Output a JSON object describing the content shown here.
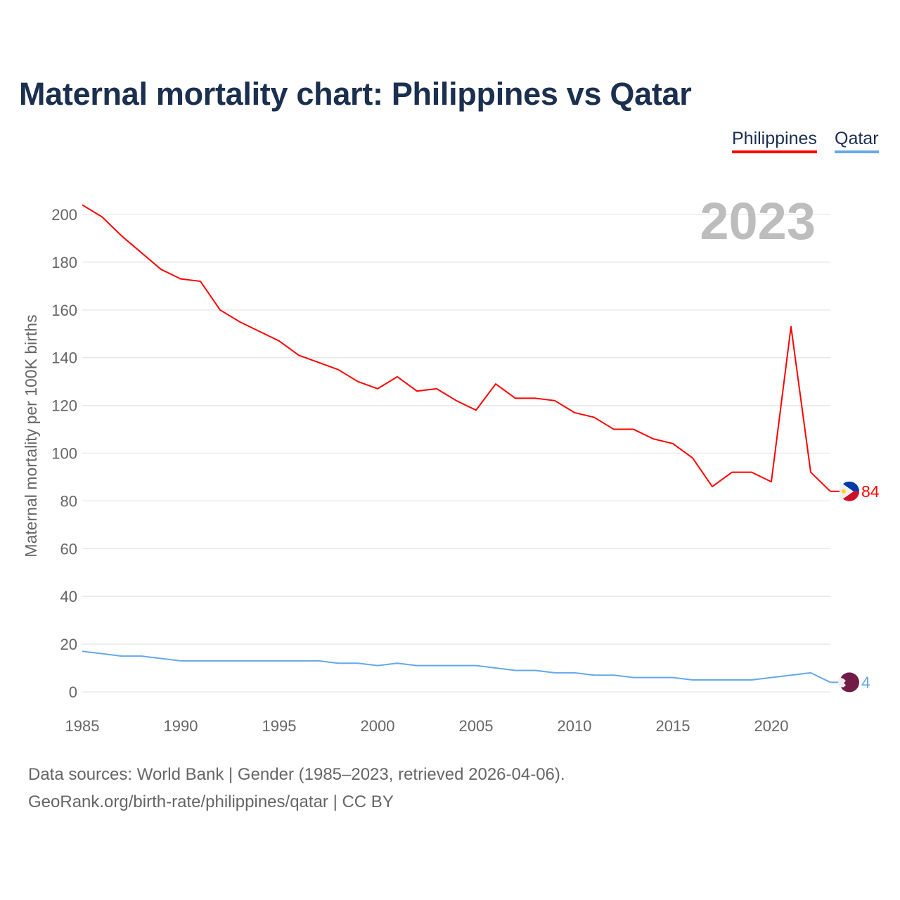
{
  "header": {
    "title": "Maternal mortality chart: Philippines vs Qatar"
  },
  "legend": [
    {
      "label": "Philippines",
      "color": "#ff0000"
    },
    {
      "label": "Qatar",
      "color": "#64a8ec"
    }
  ],
  "footer": {
    "line1": "Data sources: World Bank | Gender (1985–2023, retrieved 2026-04-06).",
    "line2": "GeoRank.org/birth-rate/philippines/qatar | CC BY"
  },
  "chart_data": {
    "type": "line",
    "title": "Maternal mortality chart: Philippines vs Qatar",
    "year_label": "2023",
    "xlabel": "",
    "ylabel": "Maternal mortality per 100K births",
    "xlim": [
      1985,
      2023
    ],
    "ylim": [
      0,
      200
    ],
    "xticks": [
      1985,
      1990,
      1995,
      2000,
      2005,
      2010,
      2015,
      2020
    ],
    "yticks": [
      0,
      20,
      40,
      60,
      80,
      100,
      120,
      140,
      160,
      180,
      200
    ],
    "grid": true,
    "legend_position": "top-right",
    "x": [
      1985,
      1986,
      1987,
      1988,
      1989,
      1990,
      1991,
      1992,
      1993,
      1994,
      1995,
      1996,
      1997,
      1998,
      1999,
      2000,
      2001,
      2002,
      2003,
      2004,
      2005,
      2006,
      2007,
      2008,
      2009,
      2010,
      2011,
      2012,
      2013,
      2014,
      2015,
      2016,
      2017,
      2018,
      2019,
      2020,
      2021,
      2022,
      2023
    ],
    "series": [
      {
        "name": "Philippines",
        "color": "#ff0000",
        "end_label": "84",
        "values": [
          204,
          199,
          191,
          184,
          177,
          173,
          172,
          160,
          155,
          151,
          147,
          141,
          138,
          135,
          130,
          127,
          132,
          126,
          127,
          122,
          118,
          129,
          123,
          123,
          122,
          117,
          115,
          110,
          110,
          106,
          104,
          98,
          86,
          92,
          92,
          88,
          153,
          92,
          84
        ]
      },
      {
        "name": "Qatar",
        "color": "#64a8ec",
        "end_label": "4",
        "values": [
          17,
          16,
          15,
          15,
          14,
          13,
          13,
          13,
          13,
          13,
          13,
          13,
          13,
          12,
          12,
          11,
          12,
          11,
          11,
          11,
          11,
          10,
          9,
          9,
          8,
          8,
          7,
          7,
          6,
          6,
          6,
          5,
          5,
          5,
          5,
          6,
          7,
          8,
          4
        ]
      }
    ]
  }
}
